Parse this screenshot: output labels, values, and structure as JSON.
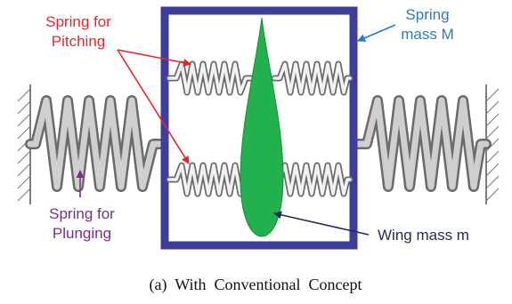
{
  "labels": {
    "pitch_spring_line1": "Spring for",
    "pitch_spring_line2": "Pitching",
    "spring_mass_line1": "Spring",
    "spring_mass_line2": "mass M",
    "plunge_spring_line1": "Spring for",
    "plunge_spring_line2": "Plunging",
    "wing_mass": "Wing mass m"
  },
  "caption": "(a)  With  Conventional  Concept",
  "colors": {
    "pitch_label": "#e8262a",
    "spring_mass_label": "#2b7bc4",
    "plunge_label": "#7a2e8e",
    "wing_label": "#1f2a5e",
    "frame": "#3d3d9b",
    "wing_fill": "#22b14c",
    "spring_light": "#f2f2f2",
    "spring_dark": "#6b6b6b"
  }
}
